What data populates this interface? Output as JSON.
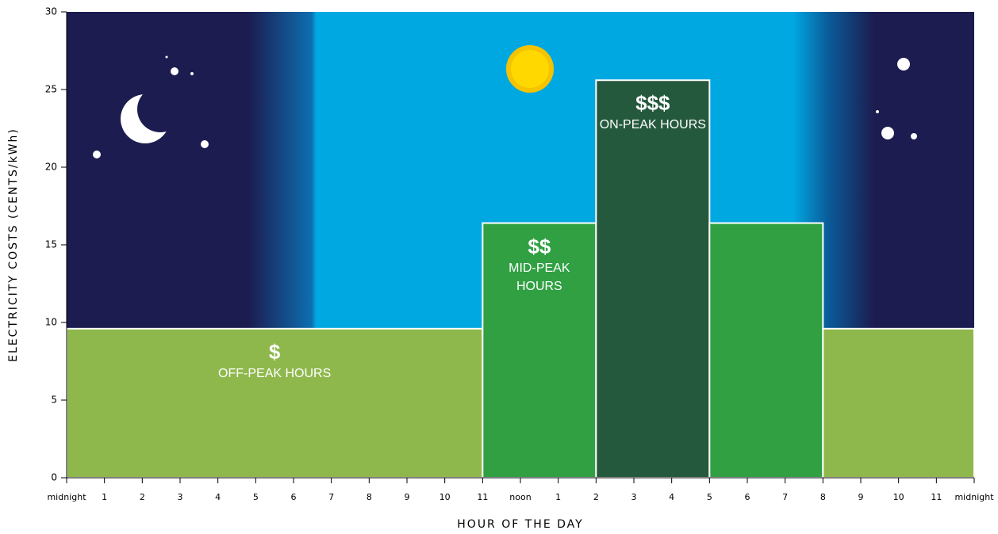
{
  "chart_data": {
    "type": "histogram",
    "ylabel": "ELECTRICITY COSTS (CENTS/kWh)",
    "xlabel": "HOUR OF THE DAY",
    "bins": [
      0,
      11,
      14,
      17,
      20,
      24
    ],
    "values": [
      9.6,
      16.4,
      25.6,
      16.4,
      9.6
    ],
    "colors": [
      "#8fb84c",
      "#30a043",
      "#25593d",
      "#30a043",
      "#8fb84c"
    ],
    "bar_labels": [
      {
        "symbol": "$",
        "text": "OFF-PEAK HOURS"
      },
      {
        "symbol": "$$",
        "text": "MID-PEAK HOURS"
      },
      {
        "symbol": "$$$",
        "text": "ON-PEAK HOURS"
      },
      null,
      null
    ],
    "xlim": [
      0,
      24
    ],
    "xticks": [
      {
        "value": 0,
        "label": "midnight"
      },
      1,
      2,
      3,
      4,
      5,
      6,
      7,
      8,
      9,
      10,
      11,
      {
        "value": 12,
        "label": "noon"
      },
      {
        "value": 13,
        "label": "1"
      },
      {
        "value": 14,
        "label": "2"
      },
      {
        "value": 15,
        "label": "3"
      },
      {
        "value": 16,
        "label": "4"
      },
      {
        "value": 17,
        "label": "5"
      },
      {
        "value": 18,
        "label": "6"
      },
      {
        "value": 19,
        "label": "7"
      },
      {
        "value": 20,
        "label": "8"
      },
      {
        "value": 21,
        "label": "9"
      },
      {
        "value": 22,
        "label": "10"
      },
      {
        "value": 23,
        "label": "11"
      },
      {
        "value": 24,
        "label": "midnight"
      }
    ],
    "ylim": [
      0,
      30
    ],
    "yticks": [
      0,
      5,
      10,
      15,
      20,
      25,
      30
    ]
  }
}
